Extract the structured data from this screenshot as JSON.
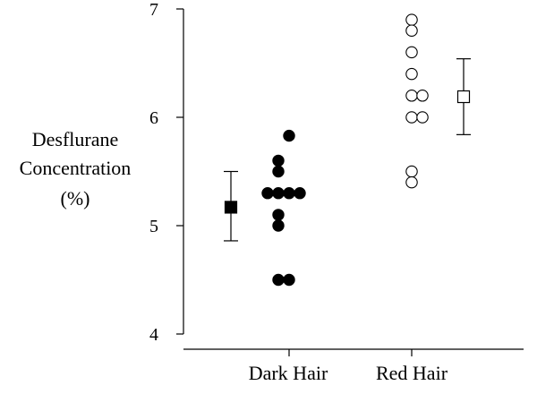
{
  "chart_data": {
    "type": "scatter",
    "ylabel": [
      "Desflurane",
      "Concentration",
      "(%)"
    ],
    "ylim": [
      4,
      7
    ],
    "yticks": [
      4,
      5,
      6,
      7
    ],
    "categories": [
      "Dark Hair",
      "Red Hair"
    ],
    "grid": false,
    "legend": "none",
    "series": [
      {
        "category": "Dark Hair",
        "marker": "filled-circle",
        "points": [
          {
            "offset": 0,
            "y": 5.83
          },
          {
            "offset": -1,
            "y": 5.6
          },
          {
            "offset": -1,
            "y": 5.5
          },
          {
            "offset": -2,
            "y": 5.3
          },
          {
            "offset": -1,
            "y": 5.3
          },
          {
            "offset": 0,
            "y": 5.3
          },
          {
            "offset": 1,
            "y": 5.3
          },
          {
            "offset": -1,
            "y": 5.1
          },
          {
            "offset": -1,
            "y": 5.0
          },
          {
            "offset": -1,
            "y": 4.5
          },
          {
            "offset": 0,
            "y": 4.5
          }
        ],
        "summary": {
          "marker": "filled-square",
          "mean": 5.17,
          "upper": 5.5,
          "lower": 4.86
        }
      },
      {
        "category": "Red Hair",
        "marker": "open-circle",
        "points": [
          {
            "offset": 0,
            "y": 6.9
          },
          {
            "offset": 0,
            "y": 6.8
          },
          {
            "offset": 0,
            "y": 6.6
          },
          {
            "offset": 0,
            "y": 6.4
          },
          {
            "offset": 0,
            "y": 6.2
          },
          {
            "offset": 1,
            "y": 6.2
          },
          {
            "offset": 0,
            "y": 6.0
          },
          {
            "offset": 1,
            "y": 6.0
          },
          {
            "offset": 0,
            "y": 5.5
          },
          {
            "offset": 0,
            "y": 5.4
          }
        ],
        "summary": {
          "marker": "open-square",
          "mean": 6.19,
          "upper": 6.54,
          "lower": 5.84
        }
      }
    ]
  }
}
